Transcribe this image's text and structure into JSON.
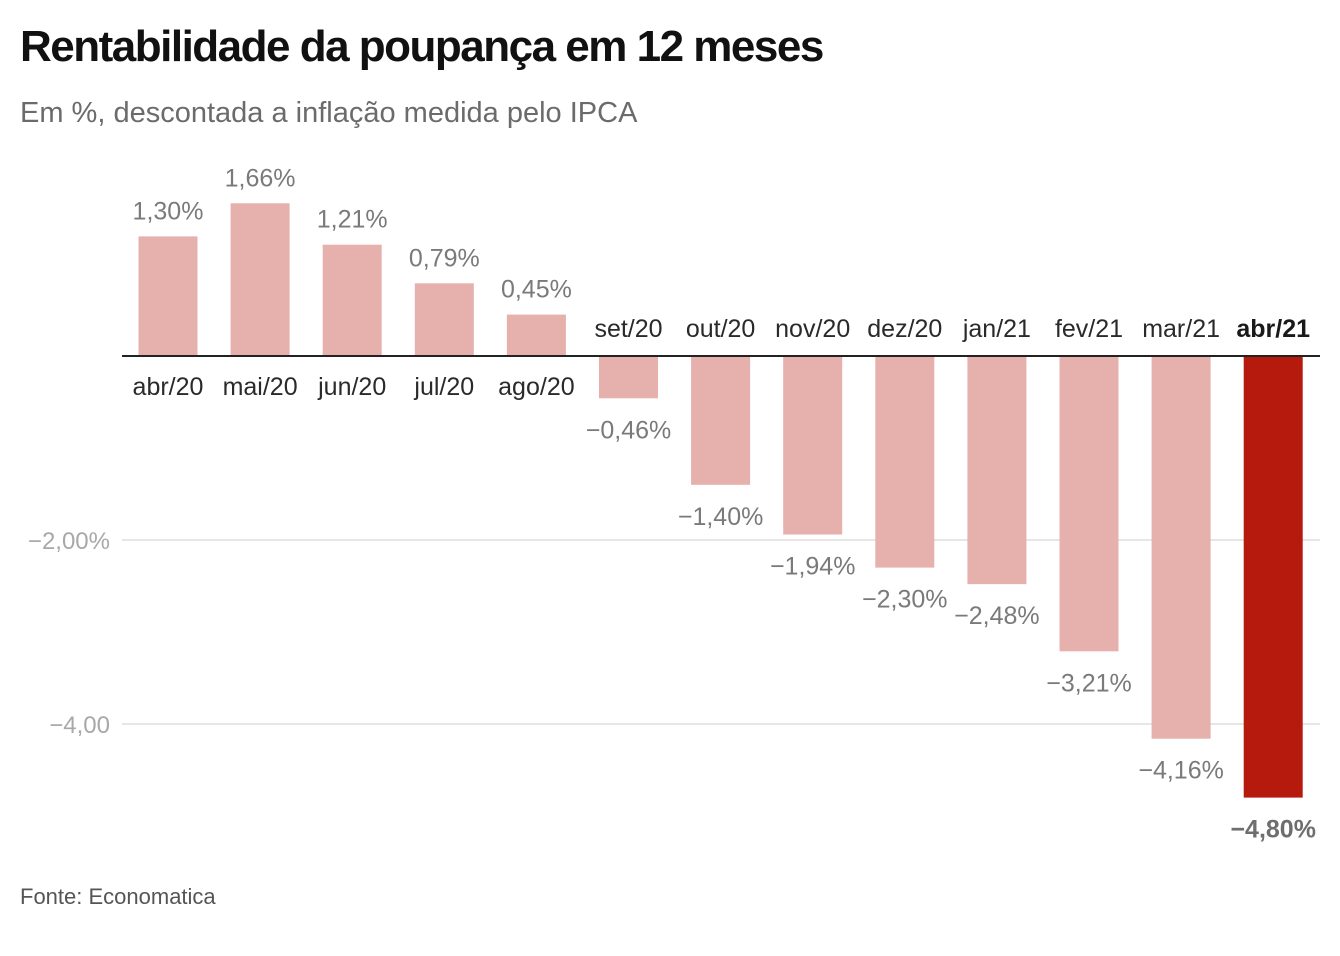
{
  "header": {
    "title": "Rentabilidade da poupança em 12 meses",
    "subtitle": "Em %, descontada a inflação medida pelo IPCA"
  },
  "footer": {
    "source": "Fonte: Economatica"
  },
  "colors": {
    "bar": "#e6b0ac",
    "highlight": "#b51a0c",
    "baseline": "#222222",
    "grid": "#dddddd"
  },
  "chart_data": {
    "type": "bar",
    "title": "Rentabilidade da poupança em 12 meses",
    "subtitle": "Em %, descontada a inflação medida pelo IPCA",
    "categories": [
      "abr/20",
      "mai/20",
      "jun/20",
      "jul/20",
      "ago/20",
      "set/20",
      "out/20",
      "nov/20",
      "dez/20",
      "jan/21",
      "fev/21",
      "mar/21",
      "abr/21"
    ],
    "values": [
      1.3,
      1.66,
      1.21,
      0.79,
      0.45,
      -0.46,
      -1.4,
      -1.94,
      -2.3,
      -2.48,
      -3.21,
      -4.16,
      -4.8
    ],
    "value_labels": [
      "1,30%",
      "1,66%",
      "1,21%",
      "0,79%",
      "0,45%",
      "−0,46%",
      "−1,40%",
      "−1,94%",
      "−2,30%",
      "−2,48%",
      "−3,21%",
      "−4,16%",
      "−4,80%"
    ],
    "highlight_index": 12,
    "y_ticks": [
      -2,
      -4
    ],
    "y_tick_labels": [
      "−2,00%",
      "−4,00"
    ],
    "ylim": [
      -5.0,
      2.0
    ],
    "grid": true,
    "legend": "none",
    "source": "Fonte: Economatica"
  }
}
